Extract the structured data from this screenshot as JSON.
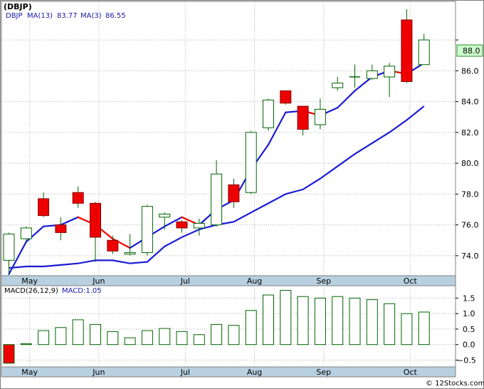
{
  "chart_data": {
    "type": "candlestick",
    "title": "(DBJP)",
    "symbol": "DBJP",
    "credit": "© 12Stocks.com",
    "price_panel": {
      "ylim": [
        72.7,
        90.5
      ],
      "yticks": [
        74.0,
        76.0,
        78.0,
        80.0,
        82.0,
        84.0,
        86.0,
        88.0
      ],
      "last_price_label": "88.0",
      "legend": {
        "ma_long_label": "MA(13)",
        "ma_long_value": "83.77",
        "ma_short_label": "MA(3)",
        "ma_short_value": "86.55"
      },
      "candles": [
        {
          "open": 73.7,
          "high": 75.5,
          "low": 72.8,
          "close": 75.4
        },
        {
          "open": 75.1,
          "high": 75.9,
          "low": 74.9,
          "close": 75.8
        },
        {
          "open": 77.7,
          "high": 78.1,
          "low": 76.5,
          "close": 76.6
        },
        {
          "open": 76.0,
          "high": 76.5,
          "low": 75.0,
          "close": 75.5
        },
        {
          "open": 78.1,
          "high": 78.5,
          "low": 77.1,
          "close": 77.4
        },
        {
          "open": 77.4,
          "high": 77.5,
          "low": 73.6,
          "close": 75.2
        },
        {
          "open": 75.0,
          "high": 75.3,
          "low": 74.1,
          "close": 74.3
        },
        {
          "open": 74.1,
          "high": 75.4,
          "low": 74.0,
          "close": 74.2
        },
        {
          "open": 74.2,
          "high": 77.3,
          "low": 74.0,
          "close": 77.2
        },
        {
          "open": 76.5,
          "high": 76.8,
          "low": 75.7,
          "close": 76.7
        },
        {
          "open": 76.2,
          "high": 76.3,
          "low": 75.5,
          "close": 75.8
        },
        {
          "open": 75.8,
          "high": 76.4,
          "low": 75.3,
          "close": 76.1
        },
        {
          "open": 76.0,
          "high": 80.2,
          "low": 75.9,
          "close": 79.3
        },
        {
          "open": 78.6,
          "high": 79.0,
          "low": 77.1,
          "close": 77.5
        },
        {
          "open": 78.1,
          "high": 82.1,
          "low": 78.0,
          "close": 82.0
        },
        {
          "open": 82.3,
          "high": 84.2,
          "low": 82.1,
          "close": 84.1
        },
        {
          "open": 84.7,
          "high": 84.7,
          "low": 83.8,
          "close": 83.9
        },
        {
          "open": 83.7,
          "high": 83.7,
          "low": 81.8,
          "close": 82.2
        },
        {
          "open": 82.5,
          "high": 84.2,
          "low": 82.2,
          "close": 83.5
        },
        {
          "open": 84.9,
          "high": 85.6,
          "low": 84.7,
          "close": 85.2
        },
        {
          "open": 85.6,
          "high": 86.4,
          "low": 84.9,
          "close": 85.6
        },
        {
          "open": 85.5,
          "high": 86.4,
          "low": 85.4,
          "close": 86.0
        },
        {
          "open": 85.6,
          "high": 86.5,
          "low": 84.3,
          "close": 86.3
        },
        {
          "open": 89.3,
          "high": 90.0,
          "low": 85.2,
          "close": 85.3
        },
        {
          "open": 86.4,
          "high": 88.4,
          "low": 86.4,
          "close": 88.0
        }
      ],
      "ma_short": [
        72.8,
        74.9,
        75.9,
        76.0,
        76.5,
        76.0,
        75.1,
        74.5,
        75.2,
        75.9,
        76.5,
        76.0,
        77.0,
        77.6,
        79.6,
        81.2,
        83.3,
        83.4,
        83.1,
        83.6,
        84.7,
        85.6,
        86.0,
        85.8,
        86.5
      ],
      "ma_long": [
        73.2,
        73.3,
        73.3,
        73.4,
        73.5,
        73.7,
        73.7,
        73.5,
        73.6,
        74.6,
        75.2,
        75.7,
        76.0,
        76.2,
        76.8,
        77.4,
        78.0,
        78.3,
        79.0,
        79.8,
        80.6,
        81.3,
        82.0,
        82.8,
        83.7
      ]
    },
    "macd_panel": {
      "label": "MACD(26,12,9)",
      "value_label": "MACD:1.05",
      "ylim": [
        -0.72,
        1.9
      ],
      "yticks": [
        -0.5,
        0.0,
        0.5,
        1.0,
        1.5
      ],
      "values": [
        -0.6,
        0.03,
        0.45,
        0.55,
        0.8,
        0.65,
        0.42,
        0.22,
        0.45,
        0.52,
        0.42,
        0.32,
        0.65,
        0.62,
        1.1,
        1.6,
        1.75,
        1.55,
        1.5,
        1.55,
        1.5,
        1.45,
        1.32,
        1.0,
        1.05
      ]
    },
    "x_axis": {
      "months": [
        {
          "label": "May",
          "index": 1
        },
        {
          "label": "Jun",
          "index": 5
        },
        {
          "label": "Jul",
          "index": 10
        },
        {
          "label": "Aug",
          "index": 14
        },
        {
          "label": "Sep",
          "index": 18
        },
        {
          "label": "Oct",
          "index": 23
        }
      ]
    },
    "colors": {
      "up_candle": "#ffffff",
      "down_candle": "#ee0000",
      "candle_outline": "#006400",
      "ma_long": "#1a1ad6",
      "ma_short_up": "#1a1ad6",
      "ma_short_down": "#ee0000",
      "axis_band": "#b8d0e0",
      "grid": "#b0b0b0",
      "last_price_box": "#ccffcc",
      "macd_bar": "#006400"
    }
  }
}
